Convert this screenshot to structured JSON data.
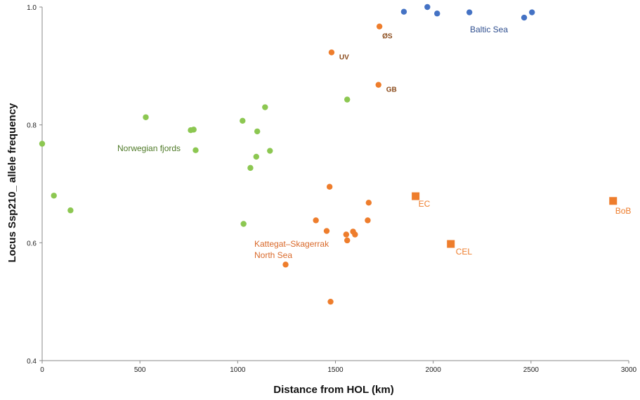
{
  "chart_data": {
    "type": "scatter",
    "xlabel": "Distance from HOL (km)",
    "ylabel": "Locus Ssp210_ allele frequency",
    "xlim": [
      0,
      3000
    ],
    "ylim": [
      0.4,
      1.0
    ],
    "x_ticks": [
      "0",
      "500",
      "1000",
      "1500",
      "2000",
      "2500",
      "3000"
    ],
    "y_ticks": [
      "0.4",
      "0.6",
      "0.8",
      "1.0"
    ],
    "grid": false,
    "colors": {
      "norwegian_fjords": "#8cc751",
      "kattegat_north_sea": "#ee7d2c",
      "baltic_sea": "#4472c4",
      "point_label": "#8a4a1a",
      "norwegian_label": "#4f7a28",
      "baltic_label": "#2f4f8f"
    },
    "series": [
      {
        "key": "norwegian_fjords",
        "marker": "circle",
        "points": [
          {
            "x": 0,
            "y": 0.768
          },
          {
            "x": 60,
            "y": 0.68
          },
          {
            "x": 145,
            "y": 0.655
          },
          {
            "x": 530,
            "y": 0.813
          },
          {
            "x": 760,
            "y": 0.791
          },
          {
            "x": 775,
            "y": 0.792
          },
          {
            "x": 785,
            "y": 0.757
          },
          {
            "x": 1025,
            "y": 0.807
          },
          {
            "x": 1030,
            "y": 0.632
          },
          {
            "x": 1065,
            "y": 0.727
          },
          {
            "x": 1095,
            "y": 0.746
          },
          {
            "x": 1100,
            "y": 0.789
          },
          {
            "x": 1140,
            "y": 0.83
          },
          {
            "x": 1165,
            "y": 0.756
          },
          {
            "x": 1560,
            "y": 0.843
          }
        ]
      },
      {
        "key": "kattegat_north_sea",
        "marker": "circle",
        "points": [
          {
            "x": 1245,
            "y": 0.563
          },
          {
            "x": 1400,
            "y": 0.638
          },
          {
            "x": 1455,
            "y": 0.62
          },
          {
            "x": 1470,
            "y": 0.695
          },
          {
            "x": 1475,
            "y": 0.5
          },
          {
            "x": 1480,
            "y": 0.923,
            "label": "UV"
          },
          {
            "x": 1555,
            "y": 0.614
          },
          {
            "x": 1560,
            "y": 0.604
          },
          {
            "x": 1590,
            "y": 0.619
          },
          {
            "x": 1600,
            "y": 0.614
          },
          {
            "x": 1665,
            "y": 0.638
          },
          {
            "x": 1670,
            "y": 0.668
          },
          {
            "x": 1720,
            "y": 0.868,
            "label": "GB"
          },
          {
            "x": 1725,
            "y": 0.967,
            "label": "ØS"
          }
        ]
      },
      {
        "key": "kattegat_north_sea",
        "marker": "square",
        "points": [
          {
            "x": 1910,
            "y": 0.679,
            "label": "EC"
          },
          {
            "x": 2090,
            "y": 0.598,
            "label": "CEL"
          },
          {
            "x": 2920,
            "y": 0.671,
            "label": "BoB"
          }
        ]
      },
      {
        "key": "baltic_sea",
        "marker": "circle",
        "points": [
          {
            "x": 1850,
            "y": 0.992
          },
          {
            "x": 1970,
            "y": 1.0
          },
          {
            "x": 2020,
            "y": 0.989
          },
          {
            "x": 2185,
            "y": 0.991
          },
          {
            "x": 2465,
            "y": 0.982
          },
          {
            "x": 2505,
            "y": 0.991
          }
        ]
      }
    ],
    "group_labels": {
      "norwegian": "Norwegian fjords",
      "kattegat_line1": "Kattegat–Skagerrak",
      "kattegat_line2": "North Sea",
      "baltic": "Baltic Sea"
    }
  }
}
